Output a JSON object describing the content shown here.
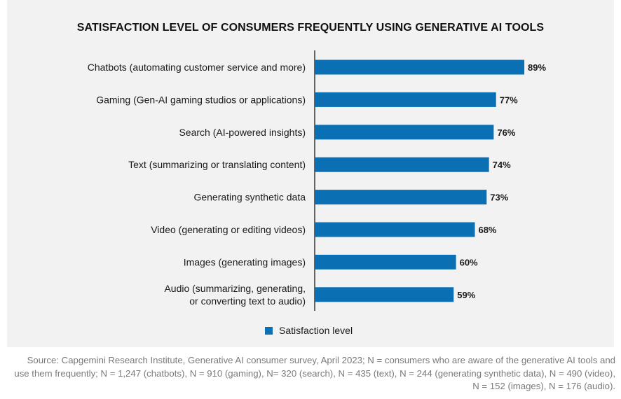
{
  "chart_data": {
    "type": "bar",
    "orientation": "horizontal",
    "title": "SATISFACTION LEVEL OF CONSUMERS FREQUENTLY USING GENERATIVE AI TOOLS",
    "categories": [
      [
        "Chatbots (automating customer service and more)"
      ],
      [
        "Gaming (Gen-AI gaming studios or applications)"
      ],
      [
        "Search (AI-powered insights)"
      ],
      [
        "Text (summarizing or translating content)"
      ],
      [
        "Generating synthetic data"
      ],
      [
        "Video (generating or editing videos)"
      ],
      [
        "Images (generating images)"
      ],
      [
        "Audio (summarizing, generating,",
        "or converting text to audio)"
      ]
    ],
    "series": [
      {
        "name": "Satisfaction level",
        "values": [
          89,
          77,
          76,
          74,
          73,
          68,
          60,
          59
        ]
      }
    ],
    "value_labels": [
      "89%",
      "77%",
      "76%",
      "74%",
      "73%",
      "68%",
      "60%",
      "59%"
    ],
    "xlim": [
      0,
      100
    ],
    "color": "#0a6fb3",
    "grid": false,
    "legend_position": "bottom"
  },
  "source": "Source: Capgemini Research Institute, Generative AI consumer survey, April 2023; N = consumers who are aware of the generative AI tools and use them frequently; N = 1,247 (chatbots), N = 910 (gaming), N= 320 (search), N = 435 (text), N = 244 (generating synthetic data), N = 490 (video), N = 152 (images), N = 176 (audio)."
}
